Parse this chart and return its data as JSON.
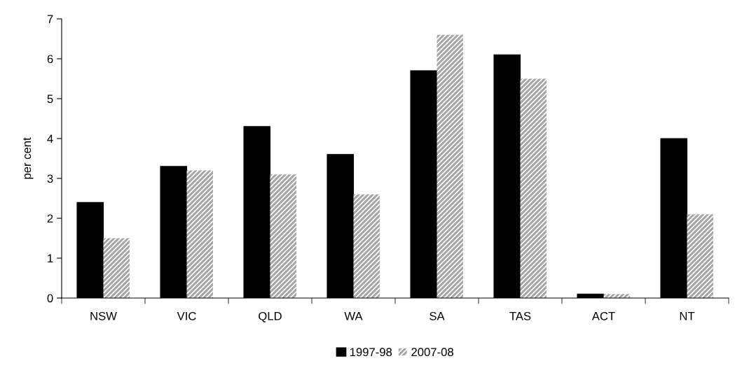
{
  "chart_data": {
    "type": "bar",
    "ylabel": "per cent",
    "categories": [
      "NSW",
      "VIC",
      "QLD",
      "WA",
      "SA",
      "TAS",
      "ACT",
      "NT"
    ],
    "series": [
      {
        "name": "1997-98",
        "color": "#000000",
        "values": [
          2.4,
          3.3,
          4.3,
          3.6,
          5.7,
          6.1,
          0.1,
          4.0
        ]
      },
      {
        "name": "2007-08",
        "color": "#a6a6a6",
        "values": [
          1.5,
          3.2,
          3.1,
          2.6,
          6.6,
          5.5,
          0.1,
          2.1
        ]
      }
    ],
    "ylim": [
      0,
      7
    ],
    "yticks": [
      0,
      1,
      2,
      3,
      4,
      5,
      6,
      7
    ],
    "grid": false,
    "legend": "bottom"
  }
}
